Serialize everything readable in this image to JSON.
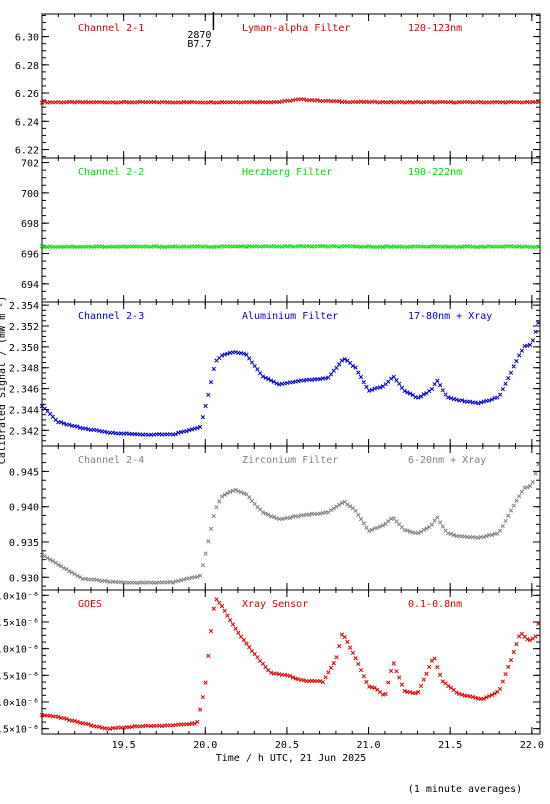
{
  "figure": {
    "ylabel": "Calibrated Signal / (mW m⁻²)",
    "xlabel": "Time / h UTC, 21 Jun 2025",
    "footnote": "(1 minute averages)"
  },
  "chart_data": [
    {
      "type": "scatter",
      "channel": "Channel 2-1",
      "filter": "Lyman-alpha Filter",
      "band": "120-123nm",
      "color": "#dd0000",
      "annotation": [
        "2870",
        "B7.7"
      ],
      "annotation_x": 20.05,
      "xlim": [
        19.0,
        22.05
      ],
      "ylim": [
        6.214,
        6.316
      ],
      "y_ticks": [
        6.22,
        6.24,
        6.26,
        6.28,
        6.3
      ],
      "y_tick_labels": [
        "6.22",
        "6.24",
        "6.26",
        "6.28",
        "6.30"
      ],
      "knots": [
        [
          19.0,
          6.2535
        ],
        [
          20.0,
          6.2535
        ],
        [
          20.45,
          6.2537
        ],
        [
          20.58,
          6.2555
        ],
        [
          20.7,
          6.2547
        ],
        [
          20.85,
          6.2538
        ],
        [
          21.2,
          6.2535
        ],
        [
          22.05,
          6.2535
        ]
      ],
      "sample_step": 0.0167
    },
    {
      "type": "scatter",
      "channel": "Channel 2-2",
      "filter": "Herzberg Filter",
      "band": "190-222nm",
      "color": "#00dd00",
      "xlim": [
        19.0,
        22.05
      ],
      "ylim": [
        692.8,
        702.3
      ],
      "y_ticks": [
        694,
        696,
        698,
        700,
        702
      ],
      "y_tick_labels": [
        "694",
        "696",
        "698",
        "700",
        "702"
      ],
      "knots": [
        [
          19.0,
          696.45
        ],
        [
          20.0,
          696.45
        ],
        [
          20.6,
          696.47
        ],
        [
          21.0,
          696.45
        ],
        [
          22.05,
          696.45
        ]
      ],
      "sample_step": 0.0167
    },
    {
      "type": "scatter",
      "channel": "Channel 2-3",
      "filter": "Aluminium Filter",
      "band": "17-80nm + Xray",
      "color": "#0000cc",
      "xlim": [
        19.0,
        22.05
      ],
      "ylim": [
        2.3405,
        2.3543
      ],
      "y_ticks": [
        2.342,
        2.344,
        2.346,
        2.348,
        2.35,
        2.352,
        2.354
      ],
      "y_tick_labels": [
        "2.342",
        "2.344",
        "2.346",
        "2.348",
        "2.350",
        "2.352",
        "2.354"
      ],
      "knots": [
        [
          19.0,
          2.3443
        ],
        [
          19.1,
          2.3428
        ],
        [
          19.25,
          2.3422
        ],
        [
          19.4,
          2.3418
        ],
        [
          19.6,
          2.3416
        ],
        [
          19.8,
          2.3416
        ],
        [
          19.97,
          2.3423
        ],
        [
          20.02,
          2.3455
        ],
        [
          20.06,
          2.3485
        ],
        [
          20.1,
          2.3492
        ],
        [
          20.18,
          2.3495
        ],
        [
          20.25,
          2.3493
        ],
        [
          20.35,
          2.3472
        ],
        [
          20.45,
          2.3464
        ],
        [
          20.6,
          2.3468
        ],
        [
          20.75,
          2.347
        ],
        [
          20.85,
          2.3489
        ],
        [
          20.92,
          2.348
        ],
        [
          21.0,
          2.3458
        ],
        [
          21.1,
          2.3463
        ],
        [
          21.15,
          2.3472
        ],
        [
          21.22,
          2.3458
        ],
        [
          21.3,
          2.3451
        ],
        [
          21.38,
          2.3458
        ],
        [
          21.42,
          2.3468
        ],
        [
          21.48,
          2.3452
        ],
        [
          21.55,
          2.3449
        ],
        [
          21.68,
          2.3446
        ],
        [
          21.8,
          2.3452
        ],
        [
          21.88,
          2.3478
        ],
        [
          21.95,
          2.35
        ],
        [
          22.0,
          2.3503
        ],
        [
          22.05,
          2.3528
        ]
      ],
      "sample_step": 0.0167
    },
    {
      "type": "scatter",
      "channel": "Channel 2-4",
      "filter": "Zirconium Filter",
      "band": "6-20nm + Xray",
      "color": "#808080",
      "xlim": [
        19.0,
        22.05
      ],
      "ylim": [
        0.9282,
        0.9486
      ],
      "y_ticks": [
        0.93,
        0.935,
        0.94,
        0.945
      ],
      "y_tick_labels": [
        "0.930",
        "0.935",
        "0.940",
        "0.945"
      ],
      "knots": [
        [
          19.0,
          0.9332
        ],
        [
          19.1,
          0.9318
        ],
        [
          19.25,
          0.9298
        ],
        [
          19.4,
          0.9294
        ],
        [
          19.6,
          0.9292
        ],
        [
          19.8,
          0.9293
        ],
        [
          19.97,
          0.9302
        ],
        [
          20.02,
          0.9352
        ],
        [
          20.06,
          0.9395
        ],
        [
          20.1,
          0.9414
        ],
        [
          20.18,
          0.9424
        ],
        [
          20.25,
          0.9418
        ],
        [
          20.35,
          0.9392
        ],
        [
          20.45,
          0.9382
        ],
        [
          20.6,
          0.9388
        ],
        [
          20.75,
          0.9392
        ],
        [
          20.85,
          0.9407
        ],
        [
          20.92,
          0.9395
        ],
        [
          21.0,
          0.9365
        ],
        [
          21.1,
          0.9375
        ],
        [
          21.15,
          0.9385
        ],
        [
          21.22,
          0.9367
        ],
        [
          21.3,
          0.9362
        ],
        [
          21.38,
          0.9372
        ],
        [
          21.42,
          0.9385
        ],
        [
          21.48,
          0.9363
        ],
        [
          21.55,
          0.9358
        ],
        [
          21.68,
          0.9356
        ],
        [
          21.8,
          0.9363
        ],
        [
          21.88,
          0.9398
        ],
        [
          21.95,
          0.9426
        ],
        [
          22.0,
          0.943
        ],
        [
          22.05,
          0.9468
        ]
      ],
      "sample_step": 0.0167
    },
    {
      "type": "scatter",
      "channel": "GOES",
      "filter": "Xray Sensor",
      "band": "0.1-0.8nm",
      "color": "#dd0000",
      "xlim": [
        19.0,
        22.05
      ],
      "ylim": [
        5.4e-06,
        8.1e-06
      ],
      "y_ticks": [
        5.5e-06,
        6e-06,
        6.5e-06,
        7e-06,
        7.5e-06,
        8e-06
      ],
      "y_tick_labels": [
        "5.5×10⁻⁶",
        "6.0×10⁻⁶",
        "6.5×10⁻⁶",
        "7.0×10⁻⁶",
        "7.5×10⁻⁶",
        "8.0×10⁻⁶"
      ],
      "knots": [
        [
          19.0,
          5.75e-06
        ],
        [
          19.1,
          5.72e-06
        ],
        [
          19.25,
          5.6e-06
        ],
        [
          19.4,
          5.5e-06
        ],
        [
          19.6,
          5.55e-06
        ],
        [
          19.8,
          5.56e-06
        ],
        [
          19.95,
          5.6e-06
        ],
        [
          20.0,
          6.3e-06
        ],
        [
          20.03,
          7.2e-06
        ],
        [
          20.06,
          7.95e-06
        ],
        [
          20.1,
          7.8e-06
        ],
        [
          20.2,
          7.3e-06
        ],
        [
          20.3,
          6.9e-06
        ],
        [
          20.4,
          6.55e-06
        ],
        [
          20.5,
          6.5e-06
        ],
        [
          20.6,
          6.4e-06
        ],
        [
          20.72,
          6.38e-06
        ],
        [
          20.8,
          6.8e-06
        ],
        [
          20.84,
          7.3e-06
        ],
        [
          20.9,
          6.95e-06
        ],
        [
          21.0,
          6.3e-06
        ],
        [
          21.05,
          6.25e-06
        ],
        [
          21.1,
          6.1e-06
        ],
        [
          21.15,
          6.75e-06
        ],
        [
          21.22,
          6.2e-06
        ],
        [
          21.3,
          6.15e-06
        ],
        [
          21.35,
          6.5e-06
        ],
        [
          21.4,
          6.85e-06
        ],
        [
          21.45,
          6.4e-06
        ],
        [
          21.55,
          6.15e-06
        ],
        [
          21.7,
          6.05e-06
        ],
        [
          21.8,
          6.2e-06
        ],
        [
          21.88,
          6.85e-06
        ],
        [
          21.93,
          7.3e-06
        ],
        [
          21.98,
          7.15e-06
        ],
        [
          22.02,
          7.2e-06
        ],
        [
          22.05,
          7.6e-06
        ]
      ],
      "sample_step": 0.0167
    }
  ],
  "x_axis": {
    "ticks": [
      19.5,
      20.0,
      20.5,
      21.0,
      21.5,
      22.0
    ],
    "tick_labels": [
      "19.5",
      "20.0",
      "20.5",
      "21.0",
      "21.5",
      "22.0"
    ],
    "minor_step": 0.1
  }
}
